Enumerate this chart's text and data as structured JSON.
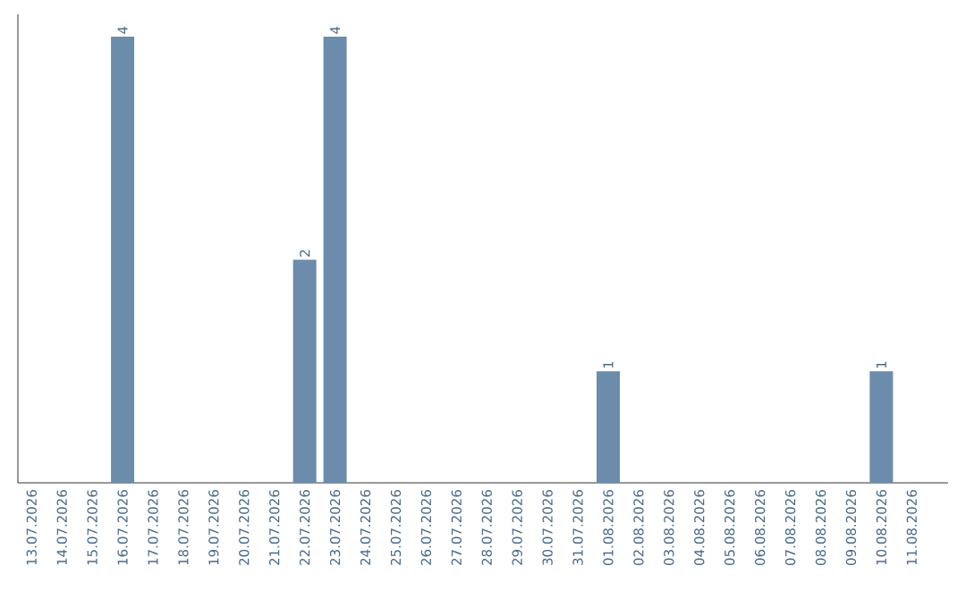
{
  "chart_data": {
    "type": "bar",
    "categories": [
      "13.07.2026",
      "14.07.2026",
      "15.07.2026",
      "16.07.2026",
      "17.07.2026",
      "18.07.2026",
      "19.07.2026",
      "20.07.2026",
      "21.07.2026",
      "22.07.2026",
      "23.07.2026",
      "24.07.2026",
      "25.07.2026",
      "26.07.2026",
      "27.07.2026",
      "28.07.2026",
      "29.07.2026",
      "30.07.2026",
      "31.07.2026",
      "01.08.2026",
      "02.08.2026",
      "03.08.2026",
      "04.08.2026",
      "05.08.2026",
      "06.08.2026",
      "07.08.2026",
      "08.08.2026",
      "09.08.2026",
      "10.08.2026",
      "11.08.2026"
    ],
    "values": [
      0,
      0,
      0,
      4,
      0,
      0,
      0,
      0,
      0,
      2,
      4,
      0,
      0,
      0,
      0,
      0,
      0,
      0,
      0,
      1,
      0,
      0,
      0,
      0,
      0,
      0,
      0,
      0,
      1,
      0
    ],
    "value_labels": [
      null,
      null,
      null,
      "4",
      null,
      null,
      null,
      null,
      null,
      "2",
      "4",
      null,
      null,
      null,
      null,
      null,
      null,
      null,
      null,
      "1",
      null,
      null,
      null,
      null,
      null,
      null,
      null,
      null,
      "1",
      null
    ],
    "color": "#6b8caa",
    "tick_labels": "x",
    "grid": false
  }
}
